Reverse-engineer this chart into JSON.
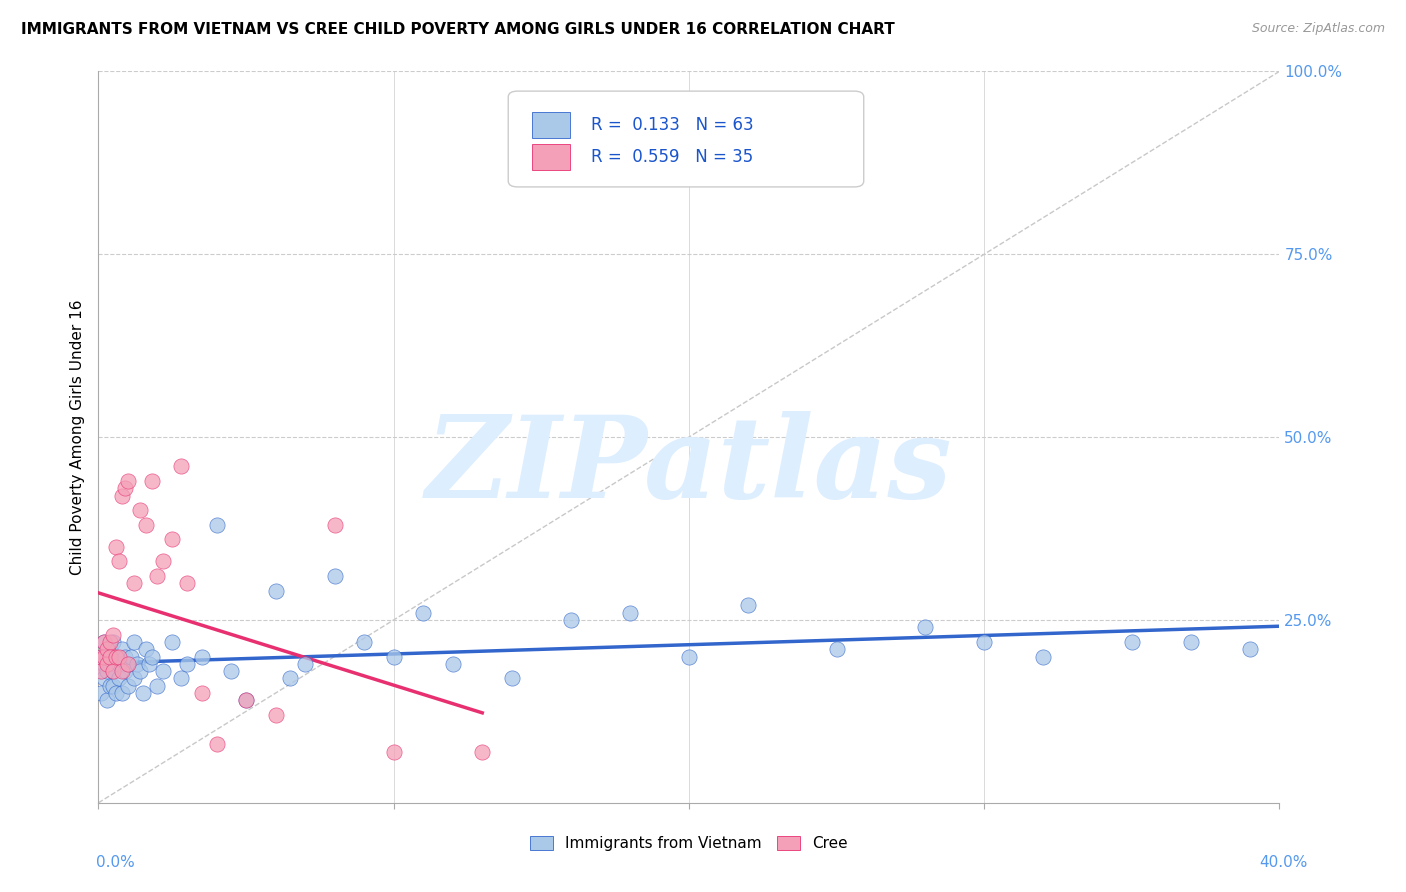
{
  "title": "IMMIGRANTS FROM VIETNAM VS CREE CHILD POVERTY AMONG GIRLS UNDER 16 CORRELATION CHART",
  "source": "Source: ZipAtlas.com",
  "ylabel": "Child Poverty Among Girls Under 16",
  "right_ytick_labels": [
    "100.0%",
    "75.0%",
    "50.0%",
    "25.0%"
  ],
  "right_ytick_positions": [
    1.0,
    0.75,
    0.5,
    0.25
  ],
  "xlim": [
    0.0,
    0.4
  ],
  "ylim": [
    0.0,
    1.0
  ],
  "legend_label1": "Immigrants from Vietnam",
  "legend_label2": "Cree",
  "series1_color": "#aac8e8",
  "series2_color": "#f4a0b8",
  "trendline1_color": "#3366cc",
  "trendline2_color": "#e83070",
  "refline_color": "#c8c8c8",
  "watermark": "ZIPatlas",
  "watermark_color": "#ddeeff",
  "grid_color": "#cccccc",
  "text_blue": "#5599ee",
  "R1": 0.133,
  "N1": 63,
  "R2": 0.559,
  "N2": 35,
  "title_fontsize": 11,
  "tick_fontsize": 11,
  "legend_fontsize": 11,
  "vietnam_x": [
    0.001,
    0.001,
    0.001,
    0.002,
    0.002,
    0.002,
    0.003,
    0.003,
    0.003,
    0.004,
    0.004,
    0.004,
    0.005,
    0.005,
    0.005,
    0.006,
    0.006,
    0.007,
    0.007,
    0.008,
    0.008,
    0.009,
    0.009,
    0.01,
    0.01,
    0.011,
    0.012,
    0.012,
    0.013,
    0.014,
    0.015,
    0.016,
    0.017,
    0.018,
    0.02,
    0.022,
    0.025,
    0.028,
    0.03,
    0.035,
    0.04,
    0.045,
    0.05,
    0.06,
    0.065,
    0.07,
    0.08,
    0.09,
    0.1,
    0.11,
    0.12,
    0.14,
    0.16,
    0.18,
    0.2,
    0.22,
    0.25,
    0.28,
    0.3,
    0.32,
    0.35,
    0.37,
    0.39
  ],
  "vietnam_y": [
    0.18,
    0.2,
    0.15,
    0.19,
    0.17,
    0.22,
    0.2,
    0.18,
    0.14,
    0.21,
    0.16,
    0.19,
    0.18,
    0.22,
    0.16,
    0.2,
    0.15,
    0.19,
    0.17,
    0.21,
    0.15,
    0.2,
    0.18,
    0.19,
    0.16,
    0.2,
    0.17,
    0.22,
    0.19,
    0.18,
    0.15,
    0.21,
    0.19,
    0.2,
    0.16,
    0.18,
    0.22,
    0.17,
    0.19,
    0.2,
    0.38,
    0.18,
    0.14,
    0.29,
    0.17,
    0.19,
    0.31,
    0.22,
    0.2,
    0.26,
    0.19,
    0.17,
    0.25,
    0.26,
    0.2,
    0.27,
    0.21,
    0.24,
    0.22,
    0.2,
    0.22,
    0.22,
    0.21
  ],
  "cree_x": [
    0.001,
    0.001,
    0.002,
    0.002,
    0.003,
    0.003,
    0.004,
    0.004,
    0.005,
    0.005,
    0.006,
    0.006,
    0.007,
    0.007,
    0.008,
    0.008,
    0.009,
    0.01,
    0.01,
    0.012,
    0.014,
    0.016,
    0.018,
    0.02,
    0.022,
    0.025,
    0.028,
    0.03,
    0.035,
    0.04,
    0.05,
    0.06,
    0.08,
    0.1,
    0.13
  ],
  "cree_y": [
    0.2,
    0.18,
    0.22,
    0.2,
    0.19,
    0.21,
    0.22,
    0.2,
    0.23,
    0.18,
    0.35,
    0.2,
    0.33,
    0.2,
    0.42,
    0.18,
    0.43,
    0.19,
    0.44,
    0.3,
    0.4,
    0.38,
    0.44,
    0.31,
    0.33,
    0.36,
    0.46,
    0.3,
    0.15,
    0.08,
    0.14,
    0.12,
    0.38,
    0.07,
    0.07
  ]
}
